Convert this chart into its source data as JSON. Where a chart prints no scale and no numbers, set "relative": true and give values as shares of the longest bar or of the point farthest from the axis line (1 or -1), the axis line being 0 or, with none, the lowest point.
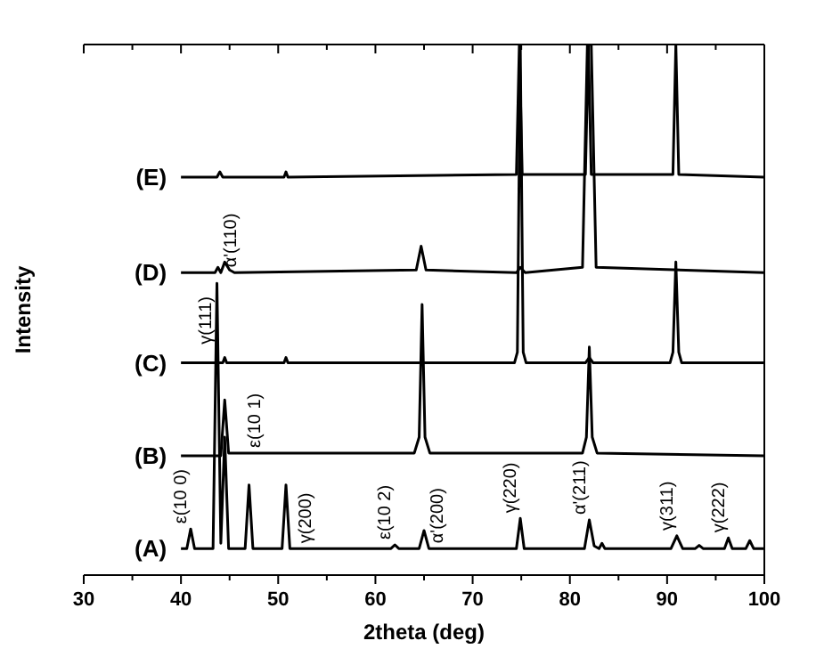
{
  "chart_data": {
    "type": "line",
    "xlabel": "2theta (deg)",
    "ylabel": "Intensity",
    "relative": true,
    "xlim": [
      30,
      100
    ],
    "xticks": [
      30,
      {
        "value": 35,
        "label": null
      },
      40,
      {
        "value": 45,
        "label": null
      },
      50,
      {
        "value": 55,
        "label": null
      },
      60,
      {
        "value": 65,
        "label": null
      },
      70,
      {
        "value": 75,
        "label": null
      },
      80,
      {
        "value": 85,
        "label": null
      },
      90,
      {
        "value": 95,
        "label": null
      },
      100
    ],
    "grid": false,
    "marker": "none",
    "line_style": "solid",
    "series": [
      {
        "name": "(A)",
        "color": "#000000",
        "x": [
          40,
          40.6,
          41,
          41.4,
          43.3,
          43.7,
          44.1,
          44.5,
          44.9,
          46.6,
          47,
          47.4,
          50.4,
          50.8,
          51.2,
          61.6,
          62,
          62.4,
          64.5,
          65,
          65.5,
          74.5,
          74.9,
          75.3,
          81.5,
          82,
          82.5,
          83,
          83.3,
          83.6,
          90.4,
          91,
          91.6,
          92.9,
          93.3,
          93.7,
          95.9,
          96.3,
          96.7,
          98.1,
          98.5,
          98.9,
          100
        ],
        "values": [
          0.05,
          0.05,
          0.087,
          0.05,
          0.05,
          0.55,
          0.06,
          0.26,
          0.05,
          0.05,
          0.17,
          0.05,
          0.05,
          0.17,
          0.05,
          0.05,
          0.057,
          0.05,
          0.05,
          0.084,
          0.05,
          0.05,
          0.107,
          0.05,
          0.05,
          0.104,
          0.055,
          0.05,
          0.06,
          0.05,
          0.05,
          0.074,
          0.05,
          0.05,
          0.056,
          0.05,
          0.05,
          0.07,
          0.05,
          0.05,
          0.065,
          0.05,
          0.05
        ]
      },
      {
        "name": "(B)",
        "color": "#000000",
        "x": [
          40,
          44.1,
          44.5,
          44.9,
          64,
          64.5,
          64.8,
          65.1,
          65.6,
          81.3,
          81.7,
          82,
          82.3,
          82.8,
          100
        ],
        "values": [
          0.225,
          0.225,
          0.33,
          0.23,
          0.23,
          0.26,
          0.51,
          0.26,
          0.23,
          0.23,
          0.26,
          0.43,
          0.26,
          0.23,
          0.225
        ]
      },
      {
        "name": "(C)",
        "color": "#000000",
        "x": [
          40,
          44.3,
          44.5,
          44.7,
          50.6,
          50.8,
          51,
          74.3,
          74.6,
          74.9,
          75.2,
          75.5,
          81.6,
          82,
          82.4,
          90.3,
          90.6,
          90.9,
          91.2,
          91.5,
          100
        ],
        "values": [
          0.4,
          0.4,
          0.41,
          0.4,
          0.4,
          0.41,
          0.4,
          0.4,
          0.42,
          1,
          0.42,
          0.4,
          0.4,
          0.41,
          0.4,
          0.4,
          0.42,
          0.59,
          0.42,
          0.4,
          0.4
        ]
      },
      {
        "name": "(D)",
        "color": "#000000",
        "x": [
          40,
          43.5,
          43.8,
          44.1,
          44.5,
          45,
          45.5,
          64.2,
          64.7,
          65.2,
          74.5,
          74.9,
          75.4,
          81.3,
          81.8,
          82.2,
          82.7,
          100
        ],
        "values": [
          0.57,
          0.57,
          0.58,
          0.57,
          0.59,
          0.575,
          0.57,
          0.575,
          0.62,
          0.575,
          0.57,
          0.58,
          0.57,
          0.58,
          1,
          1,
          0.58,
          0.57
        ]
      },
      {
        "name": "(E)",
        "color": "#000000",
        "x": [
          40,
          43.7,
          44,
          44.3,
          50.6,
          50.8,
          51,
          74.5,
          74.8,
          75.1,
          81.6,
          81.9,
          82.2,
          90.6,
          90.9,
          91.2,
          100
        ],
        "values": [
          0.75,
          0.75,
          0.76,
          0.75,
          0.75,
          0.76,
          0.75,
          0.755,
          1,
          0.755,
          0.755,
          1,
          0.755,
          0.755,
          1,
          0.755,
          0.75
        ]
      }
    ],
    "annotations": [
      {
        "text": "ε(10 0)",
        "x": 41,
        "y": 0.087
      },
      {
        "text": "γ(111)",
        "x": 43.6,
        "y": 0.425
      },
      {
        "text": "ε(10 1)",
        "x": 48.6,
        "y": 0.23
      },
      {
        "text": "γ(200)",
        "x": 53.8,
        "y": 0.05
      },
      {
        "text": "ε(10 2)",
        "x": 62,
        "y": 0.057
      },
      {
        "text": "α'(200)",
        "x": 67.4,
        "y": 0.05
      },
      {
        "text": "γ(220)",
        "x": 74.9,
        "y": 0.107
      },
      {
        "text": "α'(211)",
        "x": 82,
        "y": 0.104
      },
      {
        "text": "γ(311)",
        "x": 91,
        "y": 0.074
      },
      {
        "text": "γ(222)",
        "x": 96.3,
        "y": 0.07
      },
      {
        "text": "α'(110)",
        "x": 46.1,
        "y": 0.57
      }
    ]
  }
}
